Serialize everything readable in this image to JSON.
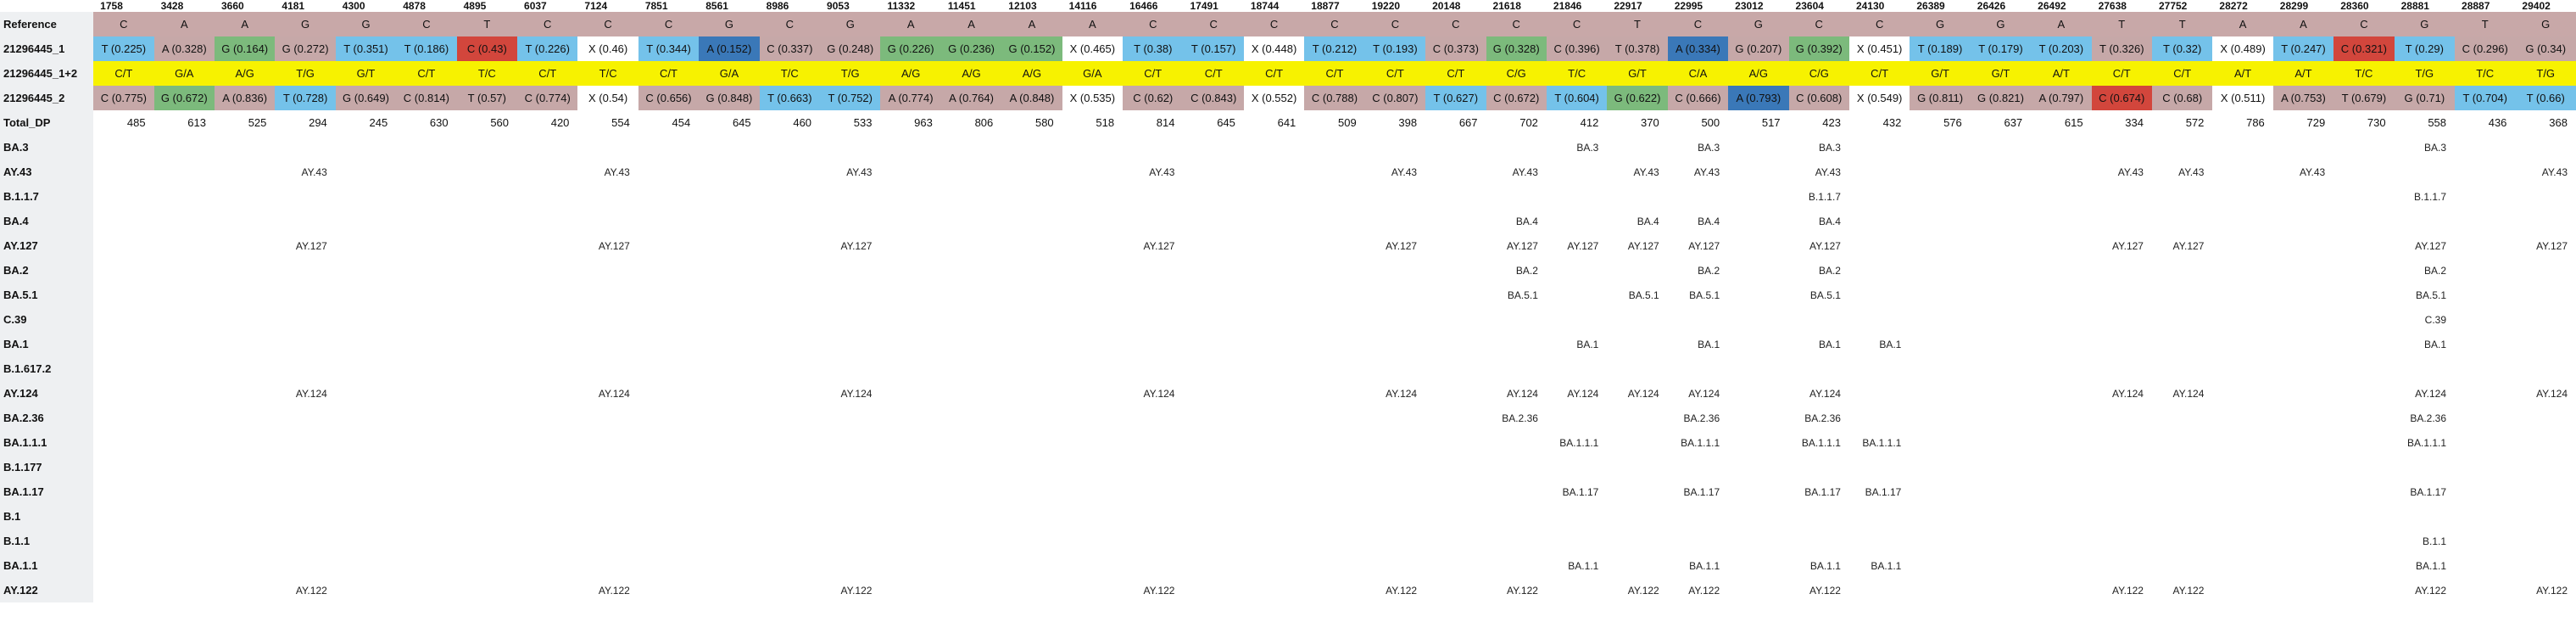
{
  "positions": [
    "1758",
    "3428",
    "3660",
    "4181",
    "4300",
    "4878",
    "4895",
    "6037",
    "7124",
    "7851",
    "8561",
    "8986",
    "9053",
    "11332",
    "11451",
    "12103",
    "14116",
    "16466",
    "17491",
    "18744",
    "18877",
    "19220",
    "20148",
    "21618",
    "21846",
    "22917",
    "22995",
    "23012",
    "23604",
    "24130",
    "26389",
    "26426",
    "26492",
    "27638",
    "27752",
    "28272",
    "28299",
    "28360",
    "28881",
    "28887",
    "29402"
  ],
  "colors": {
    "reference": "#c8a8a8",
    "consensus": "#f7f200",
    "A_light": "#c6a8a8",
    "A_dark": "#3a78b8",
    "T_blue": "#74c2ea",
    "G_green": "#7cba7c",
    "C_rose": "#c4a6a6",
    "C_red": "#d2463c",
    "X_white": "#ffffff"
  },
  "reference": {
    "label": "Reference",
    "values": [
      "C",
      "A",
      "A",
      "G",
      "G",
      "C",
      "T",
      "C",
      "C",
      "C",
      "G",
      "C",
      "G",
      "A",
      "A",
      "A",
      "A",
      "C",
      "C",
      "C",
      "C",
      "C",
      "C",
      "C",
      "C",
      "T",
      "C",
      "G",
      "C",
      "C",
      "G",
      "G",
      "A",
      "T",
      "T",
      "A",
      "A",
      "C",
      "G",
      "T",
      "G"
    ]
  },
  "sample1": {
    "label": "21296445_1",
    "cells": [
      {
        "t": "T (0.225)",
        "c": "#74c2ea"
      },
      {
        "t": "A (0.328)",
        "c": "#c6a8a8"
      },
      {
        "t": "G (0.164)",
        "c": "#7cba7c"
      },
      {
        "t": "G (0.272)",
        "c": "#c6a8a8"
      },
      {
        "t": "T (0.351)",
        "c": "#74c2ea"
      },
      {
        "t": "T (0.186)",
        "c": "#74c2ea"
      },
      {
        "t": "C (0.43)",
        "c": "#d2463c"
      },
      {
        "t": "T (0.226)",
        "c": "#74c2ea"
      },
      {
        "t": "X (0.46)",
        "c": "#ffffff"
      },
      {
        "t": "T (0.344)",
        "c": "#74c2ea"
      },
      {
        "t": "A (0.152)",
        "c": "#3a78b8"
      },
      {
        "t": "C (0.337)",
        "c": "#c6a8a8"
      },
      {
        "t": "G (0.248)",
        "c": "#c6a8a8"
      },
      {
        "t": "G (0.226)",
        "c": "#7cba7c"
      },
      {
        "t": "G (0.236)",
        "c": "#7cba7c"
      },
      {
        "t": "G (0.152)",
        "c": "#7cba7c"
      },
      {
        "t": "X (0.465)",
        "c": "#ffffff"
      },
      {
        "t": "T (0.38)",
        "c": "#74c2ea"
      },
      {
        "t": "T (0.157)",
        "c": "#74c2ea"
      },
      {
        "t": "X (0.448)",
        "c": "#ffffff"
      },
      {
        "t": "T (0.212)",
        "c": "#74c2ea"
      },
      {
        "t": "T (0.193)",
        "c": "#74c2ea"
      },
      {
        "t": "C (0.373)",
        "c": "#c6a8a8"
      },
      {
        "t": "G (0.328)",
        "c": "#7cba7c"
      },
      {
        "t": "C (0.396)",
        "c": "#c6a8a8"
      },
      {
        "t": "T (0.378)",
        "c": "#c6a8a8"
      },
      {
        "t": "A (0.334)",
        "c": "#3a78b8"
      },
      {
        "t": "G (0.207)",
        "c": "#c6a8a8"
      },
      {
        "t": "G (0.392)",
        "c": "#7cba7c"
      },
      {
        "t": "X (0.451)",
        "c": "#ffffff"
      },
      {
        "t": "T (0.189)",
        "c": "#74c2ea"
      },
      {
        "t": "T (0.179)",
        "c": "#74c2ea"
      },
      {
        "t": "T (0.203)",
        "c": "#74c2ea"
      },
      {
        "t": "T (0.326)",
        "c": "#c6a8a8"
      },
      {
        "t": "T (0.32)",
        "c": "#74c2ea"
      },
      {
        "t": "X (0.489)",
        "c": "#ffffff"
      },
      {
        "t": "T (0.247)",
        "c": "#74c2ea"
      },
      {
        "t": "C (0.321)",
        "c": "#d2463c"
      },
      {
        "t": "T (0.29)",
        "c": "#74c2ea"
      },
      {
        "t": "C (0.296)",
        "c": "#c6a8a8"
      },
      {
        "t": "G (0.34)",
        "c": "#c6a8a8"
      }
    ]
  },
  "consensus": {
    "label": "21296445_1+2",
    "values": [
      "C/T",
      "G/A",
      "A/G",
      "T/G",
      "G/T",
      "C/T",
      "T/C",
      "C/T",
      "T/C",
      "C/T",
      "G/A",
      "T/C",
      "T/G",
      "A/G",
      "A/G",
      "A/G",
      "G/A",
      "C/T",
      "C/T",
      "C/T",
      "C/T",
      "C/T",
      "C/T",
      "C/G",
      "T/C",
      "G/T",
      "C/A",
      "A/G",
      "C/G",
      "C/T",
      "G/T",
      "G/T",
      "A/T",
      "C/T",
      "C/T",
      "A/T",
      "A/T",
      "T/C",
      "T/G",
      "T/C",
      "T/G"
    ]
  },
  "sample2": {
    "label": "21296445_2",
    "cells": [
      {
        "t": "C (0.775)",
        "c": "#c6a8a8"
      },
      {
        "t": "G (0.672)",
        "c": "#7cba7c"
      },
      {
        "t": "A (0.836)",
        "c": "#c6a8a8"
      },
      {
        "t": "T (0.728)",
        "c": "#74c2ea"
      },
      {
        "t": "G (0.649)",
        "c": "#c6a8a8"
      },
      {
        "t": "C (0.814)",
        "c": "#c6a8a8"
      },
      {
        "t": "T (0.57)",
        "c": "#c6a8a8"
      },
      {
        "t": "C (0.774)",
        "c": "#c6a8a8"
      },
      {
        "t": "X (0.54)",
        "c": "#ffffff"
      },
      {
        "t": "C (0.656)",
        "c": "#c6a8a8"
      },
      {
        "t": "G (0.848)",
        "c": "#c6a8a8"
      },
      {
        "t": "T (0.663)",
        "c": "#74c2ea"
      },
      {
        "t": "T (0.752)",
        "c": "#74c2ea"
      },
      {
        "t": "A (0.774)",
        "c": "#c6a8a8"
      },
      {
        "t": "A (0.764)",
        "c": "#c6a8a8"
      },
      {
        "t": "A (0.848)",
        "c": "#c6a8a8"
      },
      {
        "t": "X (0.535)",
        "c": "#ffffff"
      },
      {
        "t": "C (0.62)",
        "c": "#c6a8a8"
      },
      {
        "t": "C (0.843)",
        "c": "#c6a8a8"
      },
      {
        "t": "X (0.552)",
        "c": "#ffffff"
      },
      {
        "t": "C (0.788)",
        "c": "#c6a8a8"
      },
      {
        "t": "C (0.807)",
        "c": "#c6a8a8"
      },
      {
        "t": "T (0.627)",
        "c": "#74c2ea"
      },
      {
        "t": "C (0.672)",
        "c": "#c6a8a8"
      },
      {
        "t": "T (0.604)",
        "c": "#74c2ea"
      },
      {
        "t": "G (0.622)",
        "c": "#7cba7c"
      },
      {
        "t": "C (0.666)",
        "c": "#c6a8a8"
      },
      {
        "t": "A (0.793)",
        "c": "#3a78b8"
      },
      {
        "t": "C (0.608)",
        "c": "#c6a8a8"
      },
      {
        "t": "X (0.549)",
        "c": "#ffffff"
      },
      {
        "t": "G (0.811)",
        "c": "#c6a8a8"
      },
      {
        "t": "G (0.821)",
        "c": "#c6a8a8"
      },
      {
        "t": "A (0.797)",
        "c": "#c6a8a8"
      },
      {
        "t": "C (0.674)",
        "c": "#d2463c"
      },
      {
        "t": "C (0.68)",
        "c": "#c6a8a8"
      },
      {
        "t": "X (0.511)",
        "c": "#ffffff"
      },
      {
        "t": "A (0.753)",
        "c": "#c6a8a8"
      },
      {
        "t": "T (0.679)",
        "c": "#c6a8a8"
      },
      {
        "t": "G (0.71)",
        "c": "#c6a8a8"
      },
      {
        "t": "T (0.704)",
        "c": "#74c2ea"
      },
      {
        "t": "T (0.66)",
        "c": "#74c2ea"
      }
    ]
  },
  "total_dp": {
    "label": "Total_DP",
    "values": [
      "485",
      "613",
      "525",
      "294",
      "245",
      "630",
      "560",
      "420",
      "554",
      "454",
      "645",
      "460",
      "533",
      "963",
      "806",
      "580",
      "518",
      "814",
      "645",
      "641",
      "509",
      "398",
      "667",
      "702",
      "412",
      "370",
      "500",
      "517",
      "423",
      "432",
      "576",
      "637",
      "615",
      "334",
      "572",
      "786",
      "729",
      "730",
      "558",
      "436",
      "368"
    ]
  },
  "lineages": [
    {
      "label": "BA.3",
      "cells": {
        "24": "BA.3",
        "26": "BA.3",
        "28": "BA.3",
        "38": "BA.3"
      }
    },
    {
      "label": "AY.43",
      "cells": {
        "3": "AY.43",
        "8": "AY.43",
        "12": "AY.43",
        "17": "AY.43",
        "21": "AY.43",
        "23": "AY.43",
        "25": "AY.43",
        "26": "AY.43",
        "28": "AY.43",
        "33": "AY.43",
        "34": "AY.43",
        "36": "AY.43",
        "40": "AY.43"
      }
    },
    {
      "label": "B.1.1.7",
      "cells": {
        "28": "B.1.1.7",
        "38": "B.1.1.7"
      }
    },
    {
      "label": "BA.4",
      "cells": {
        "23": "BA.4",
        "25": "BA.4",
        "26": "BA.4",
        "28": "BA.4"
      }
    },
    {
      "label": "AY.127",
      "cells": {
        "3": "AY.127",
        "8": "AY.127",
        "12": "AY.127",
        "17": "AY.127",
        "21": "AY.127",
        "23": "AY.127",
        "24": "AY.127",
        "25": "AY.127",
        "26": "AY.127",
        "28": "AY.127",
        "33": "AY.127",
        "34": "AY.127",
        "38": "AY.127",
        "40": "AY.127"
      }
    },
    {
      "label": "BA.2",
      "cells": {
        "23": "BA.2",
        "26": "BA.2",
        "28": "BA.2",
        "38": "BA.2"
      }
    },
    {
      "label": "BA.5.1",
      "cells": {
        "23": "BA.5.1",
        "25": "BA.5.1",
        "26": "BA.5.1",
        "28": "BA.5.1",
        "38": "BA.5.1"
      }
    },
    {
      "label": "C.39",
      "cells": {
        "38": "C.39"
      }
    },
    {
      "label": "BA.1",
      "cells": {
        "24": "BA.1",
        "26": "BA.1",
        "28": "BA.1",
        "29": "BA.1",
        "38": "BA.1"
      }
    },
    {
      "label": "B.1.617.2",
      "cells": {}
    },
    {
      "label": "AY.124",
      "cells": {
        "3": "AY.124",
        "8": "AY.124",
        "12": "AY.124",
        "17": "AY.124",
        "21": "AY.124",
        "23": "AY.124",
        "24": "AY.124",
        "25": "AY.124",
        "26": "AY.124",
        "28": "AY.124",
        "33": "AY.124",
        "34": "AY.124",
        "38": "AY.124",
        "40": "AY.124"
      }
    },
    {
      "label": "BA.2.36",
      "cells": {
        "23": "BA.2.36",
        "26": "BA.2.36",
        "28": "BA.2.36",
        "38": "BA.2.36"
      }
    },
    {
      "label": "BA.1.1.1",
      "cells": {
        "24": "BA.1.1.1",
        "26": "BA.1.1.1",
        "28": "BA.1.1.1",
        "29": "BA.1.1.1",
        "38": "BA.1.1.1"
      }
    },
    {
      "label": "B.1.177",
      "cells": {}
    },
    {
      "label": "BA.1.17",
      "cells": {
        "24": "BA.1.17",
        "26": "BA.1.17",
        "28": "BA.1.17",
        "29": "BA.1.17",
        "38": "BA.1.17"
      }
    },
    {
      "label": "B.1",
      "cells": {}
    },
    {
      "label": "B.1.1",
      "cells": {
        "38": "B.1.1"
      }
    },
    {
      "label": "BA.1.1",
      "cells": {
        "24": "BA.1.1",
        "26": "BA.1.1",
        "28": "BA.1.1",
        "29": "BA.1.1",
        "38": "BA.1.1"
      }
    },
    {
      "label": "AY.122",
      "cells": {
        "3": "AY.122",
        "8": "AY.122",
        "12": "AY.122",
        "17": "AY.122",
        "21": "AY.122",
        "23": "AY.122",
        "25": "AY.122",
        "26": "AY.122",
        "28": "AY.122",
        "33": "AY.122",
        "34": "AY.122",
        "38": "AY.122",
        "40": "AY.122"
      }
    }
  ]
}
